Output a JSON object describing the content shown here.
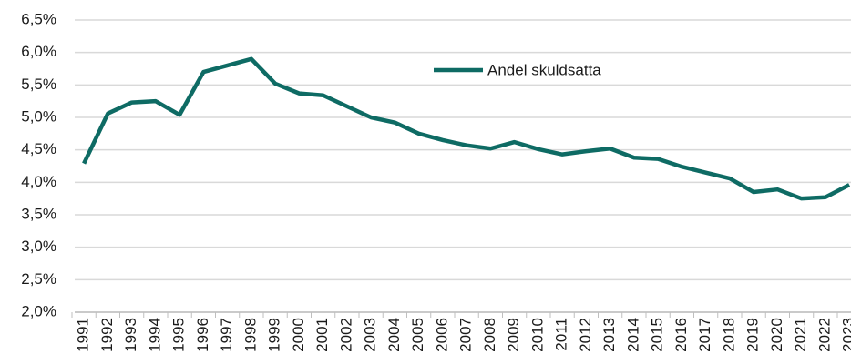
{
  "chart_data": {
    "type": "line",
    "categories": [
      "1991",
      "1992",
      "1993",
      "1994",
      "1995",
      "1996",
      "1997",
      "1998",
      "1999",
      "2000",
      "2001",
      "2002",
      "2003",
      "2004",
      "2005",
      "2006",
      "2007",
      "2008",
      "2009",
      "2010",
      "2011",
      "2012",
      "2013",
      "2014",
      "2015",
      "2016",
      "2017",
      "2018",
      "2019",
      "2020",
      "2021",
      "2022",
      "2023"
    ],
    "series": [
      {
        "name": "Andel skuldsatta",
        "color": "#0e6b64",
        "values": [
          4.29,
          5.06,
          5.23,
          5.25,
          5.04,
          5.7,
          5.8,
          5.9,
          5.52,
          5.37,
          5.34,
          5.17,
          5.0,
          4.92,
          4.75,
          4.65,
          4.57,
          4.52,
          4.62,
          4.51,
          4.43,
          4.48,
          4.52,
          4.38,
          4.36,
          4.24,
          4.15,
          4.06,
          3.85,
          3.89,
          3.75,
          3.77,
          3.96
        ]
      }
    ],
    "ylim": [
      2.0,
      6.5
    ],
    "yticks": [
      {
        "value": 2.0,
        "label": "2,0%"
      },
      {
        "value": 2.5,
        "label": "2,5%"
      },
      {
        "value": 3.0,
        "label": "3,0%"
      },
      {
        "value": 3.5,
        "label": "3,5%"
      },
      {
        "value": 4.0,
        "label": "4,0%"
      },
      {
        "value": 4.5,
        "label": "4,5%"
      },
      {
        "value": 5.0,
        "label": "5,0%"
      },
      {
        "value": 5.5,
        "label": "5,5%"
      },
      {
        "value": 6.0,
        "label": "6,0%"
      },
      {
        "value": 6.5,
        "label": "6,5%"
      }
    ],
    "grid": true,
    "legend": "top"
  }
}
